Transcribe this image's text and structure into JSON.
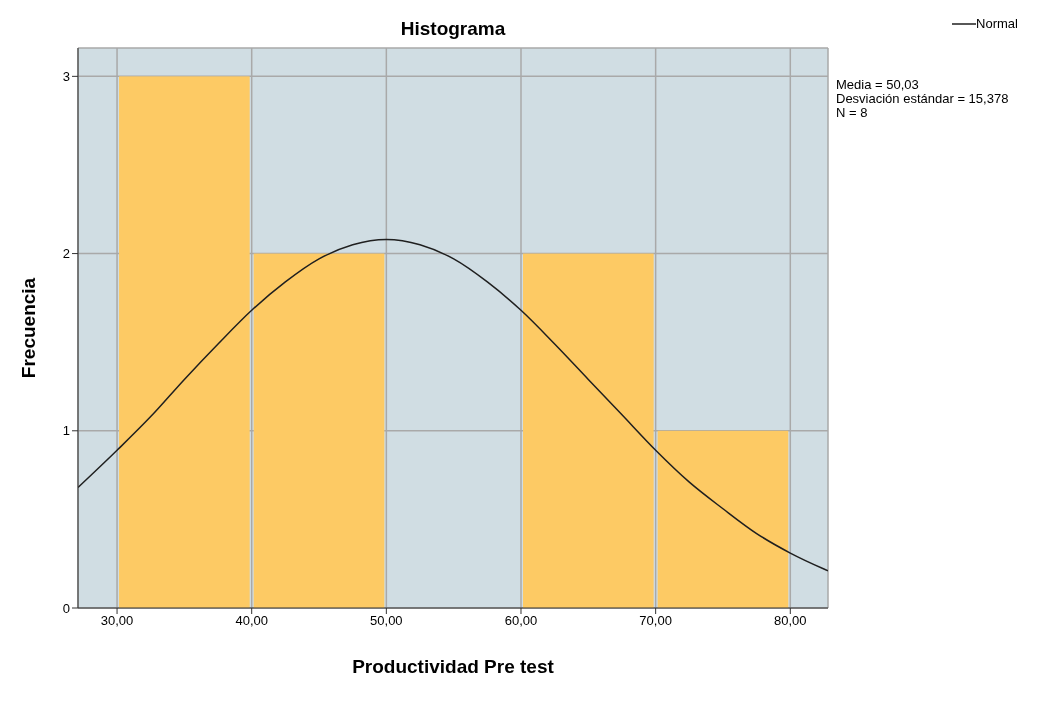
{
  "chart_data": {
    "type": "histogram",
    "title": "Histograma",
    "xlabel": "Productividad Pre test",
    "ylabel": "Frecuencia",
    "bins": [
      30,
      40,
      50,
      60,
      70,
      80
    ],
    "values": [
      3,
      2,
      0,
      2,
      1
    ],
    "color": "#fdca64",
    "series": [
      {
        "name": "Normal",
        "type": "line",
        "color": "#1f1f1f",
        "x": [
          27.1,
          30,
          32.5,
          35,
          37.5,
          40,
          42.5,
          45,
          47.5,
          50,
          52.5,
          55,
          57.5,
          60,
          62.5,
          65,
          67.5,
          70,
          72.5,
          75,
          77.5,
          80,
          82.5,
          82.8
        ],
        "values": [
          0.68,
          0.89,
          1.08,
          1.29,
          1.49,
          1.68,
          1.84,
          1.97,
          2.05,
          2.08,
          2.05,
          1.97,
          1.84,
          1.68,
          1.49,
          1.29,
          1.09,
          0.89,
          0.71,
          0.56,
          0.42,
          0.31,
          0.22,
          0.21
        ]
      }
    ],
    "xlim": [
      27.1,
      82.8
    ],
    "xticks": [
      {
        "value": 30,
        "label": "30,00"
      },
      {
        "value": 40,
        "label": "40,00"
      },
      {
        "value": 50,
        "label": "50,00"
      },
      {
        "value": 60,
        "label": "60,00"
      },
      {
        "value": 70,
        "label": "70,00"
      },
      {
        "value": 80,
        "label": "80,00"
      }
    ],
    "ylim": [
      0,
      3.16
    ],
    "yticks": [
      0,
      1,
      2,
      3
    ],
    "grid": true,
    "legend": "top right",
    "marker": "none",
    "annotations": [
      "Media = 50,03",
      "Desviación estándar = 15,378",
      "N = 8"
    ]
  }
}
